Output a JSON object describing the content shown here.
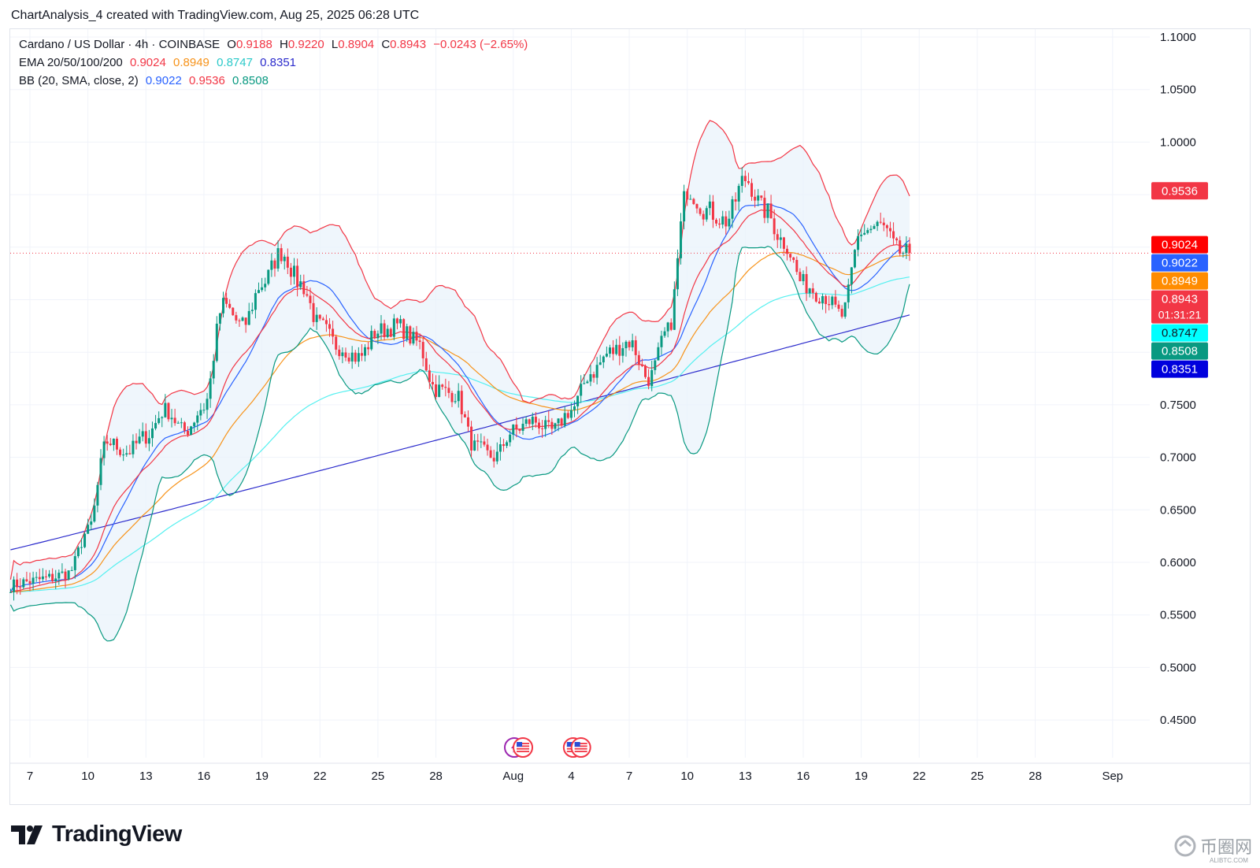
{
  "header": {
    "text": "ChartAnalysis_4 created with TradingView.com, Aug 25, 2025 06:28 UTC"
  },
  "legend": {
    "line1": {
      "symbol": "Cardano / US Dollar · 4h · COINBASE",
      "o_label": "O",
      "o_value": "0.9188",
      "h_label": "H",
      "h_value": "0.9220",
      "l_label": "L",
      "l_value": "0.8904",
      "c_label": "C",
      "c_value": "0.8943",
      "change": "−0.0243 (−2.65%)"
    },
    "line2": {
      "label": "EMA 20/50/100/200",
      "v20": "0.9024",
      "v50": "0.8949",
      "v100": "0.8747",
      "v200": "0.8351"
    },
    "line3": {
      "label": "BB (20, SMA, close, 2)",
      "basis": "0.9022",
      "upper": "0.9536",
      "lower": "0.8508"
    }
  },
  "colors": {
    "up": "#089981",
    "down": "#f23645",
    "ema20": "#f23645",
    "ema50": "#f7931a",
    "ema100": "#55f0f0",
    "ema200": "#2b2bcc",
    "bb_basis": "#2962ff",
    "bb_upper": "#f23645",
    "bb_lower": "#089981",
    "bb_fill": "#e8f2fb",
    "grid": "#f0f3fa",
    "axis_text": "#131722"
  },
  "badges": [
    {
      "text": "0.9536",
      "color": "#f23645",
      "price": 0.9536
    },
    {
      "text": "0.9024",
      "color": "#ff0000",
      "price": 0.9024
    },
    {
      "text": "0.9022",
      "color": "#2962ff",
      "price": 0.9022
    },
    {
      "text": "0.8949",
      "color": "#ff8c00",
      "price": 0.8949
    },
    {
      "text": "0.8943",
      "sub": "01:31:21",
      "color": "#f23645",
      "price": 0.8943
    },
    {
      "text": "0.8747",
      "color": "#00ffff",
      "price": 0.8747,
      "text_color": "#131722"
    },
    {
      "text": "0.8508",
      "color": "#089981",
      "price": 0.8508
    },
    {
      "text": "0.8351",
      "color": "#0000dd",
      "price": 0.8351
    }
  ],
  "events": [
    {
      "icon": "lightning-event-icon",
      "date_index": 25.05
    },
    {
      "icon": "us-flag-icon",
      "date_index": 25.5
    },
    {
      "icon": "us-flag-icon",
      "date_index": 28.1
    },
    {
      "icon": "us-flag-icon",
      "date_index": 28.5
    }
  ],
  "chart_data": {
    "type": "candlestick",
    "title": "Cardano / US Dollar · 4h · COINBASE",
    "y_ticks": [
      "1.1000",
      "1.0500",
      "1.0000",
      "0.9500",
      "0.9000",
      "0.8500",
      "0.8000",
      "0.7500",
      "0.7000",
      "0.6500",
      "0.6000",
      "0.5500",
      "0.5000",
      "0.4500"
    ],
    "ylim": [
      0.425,
      1.11
    ],
    "x_ticks": [
      {
        "label": "7",
        "d": 0
      },
      {
        "label": "10",
        "d": 3
      },
      {
        "label": "13",
        "d": 6
      },
      {
        "label": "16",
        "d": 9
      },
      {
        "label": "19",
        "d": 12
      },
      {
        "label": "22",
        "d": 15
      },
      {
        "label": "25",
        "d": 18
      },
      {
        "label": "28",
        "d": 21
      },
      {
        "label": "Aug",
        "d": 25
      },
      {
        "label": "4",
        "d": 28
      },
      {
        "label": "7",
        "d": 31
      },
      {
        "label": "10",
        "d": 34
      },
      {
        "label": "13",
        "d": 37
      },
      {
        "label": "16",
        "d": 40
      },
      {
        "label": "19",
        "d": 43
      },
      {
        "label": "22",
        "d": 46
      },
      {
        "label": "25",
        "d": 49
      },
      {
        "label": "28",
        "d": 52
      },
      {
        "label": "Sep",
        "d": 56
      }
    ],
    "last_price": 0.8943,
    "close_anchors": [
      [
        -1,
        0.578
      ],
      [
        0,
        0.582
      ],
      [
        1,
        0.585
      ],
      [
        2,
        0.59
      ],
      [
        3,
        0.63
      ],
      [
        4,
        0.715
      ],
      [
        5,
        0.705
      ],
      [
        6,
        0.72
      ],
      [
        7,
        0.745
      ],
      [
        8,
        0.725
      ],
      [
        9,
        0.748
      ],
      [
        10,
        0.845
      ],
      [
        11,
        0.825
      ],
      [
        12,
        0.865
      ],
      [
        13,
        0.895
      ],
      [
        14,
        0.865
      ],
      [
        15,
        0.825
      ],
      [
        16,
        0.805
      ],
      [
        17,
        0.795
      ],
      [
        18,
        0.82
      ],
      [
        19,
        0.825
      ],
      [
        20,
        0.81
      ],
      [
        21,
        0.765
      ],
      [
        22,
        0.76
      ],
      [
        23,
        0.71
      ],
      [
        24,
        0.7
      ],
      [
        25,
        0.725
      ],
      [
        26,
        0.735
      ],
      [
        27,
        0.725
      ],
      [
        28,
        0.745
      ],
      [
        29,
        0.78
      ],
      [
        30,
        0.8
      ],
      [
        31,
        0.81
      ],
      [
        32,
        0.775
      ],
      [
        33,
        0.82
      ],
      [
        34,
        0.955
      ],
      [
        35,
        0.935
      ],
      [
        36,
        0.925
      ],
      [
        37,
        0.965
      ],
      [
        38,
        0.935
      ],
      [
        39,
        0.905
      ],
      [
        40,
        0.865
      ],
      [
        41,
        0.855
      ],
      [
        42,
        0.835
      ],
      [
        43,
        0.915
      ],
      [
        44,
        0.92
      ],
      [
        45,
        0.895
      ],
      [
        45.5,
        0.894
      ]
    ],
    "series": [
      {
        "name": "EMA 20",
        "last": 0.9024
      },
      {
        "name": "EMA 50",
        "last": 0.8949
      },
      {
        "name": "EMA 100",
        "last": 0.8747
      },
      {
        "name": "EMA 200",
        "last": 0.8351
      },
      {
        "name": "BB basis",
        "last": 0.9022
      },
      {
        "name": "BB upper",
        "last": 0.9536
      },
      {
        "name": "BB lower",
        "last": 0.8508
      }
    ]
  },
  "brand": {
    "name": "TradingView",
    "watermark": "币圈网",
    "watermark_sub": "ALIBTC.COM"
  }
}
